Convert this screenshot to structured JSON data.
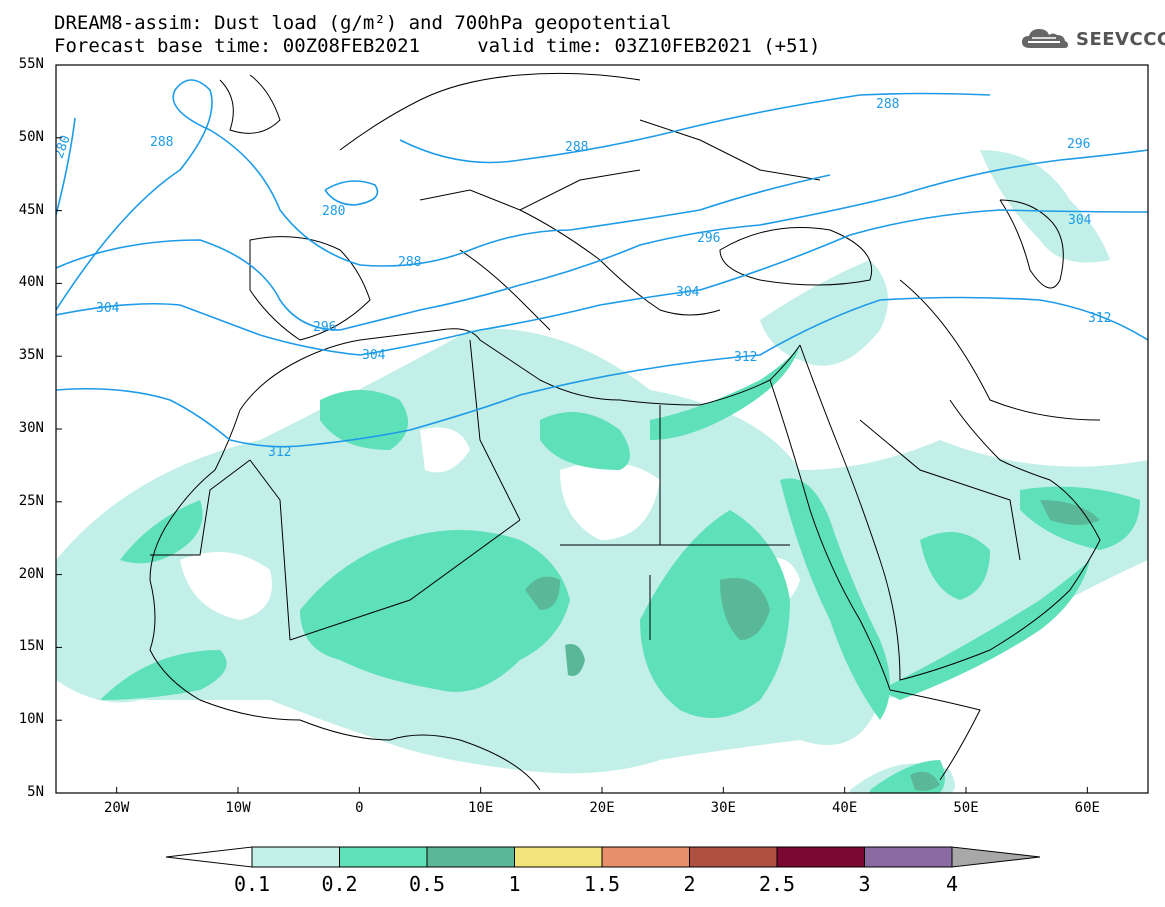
{
  "header": {
    "line1": "DREAM8-assim: Dust load (g/m²) and 700hPa geopotential",
    "line2": "Forecast base time: 00Z08FEB2021     valid time: 03Z10FEB2021 (+51)"
  },
  "brand": {
    "text": "SEEVCCC",
    "icon": "cloud-logo-icon"
  },
  "axes": {
    "lat_labels": [
      "55N",
      "50N",
      "45N",
      "40N",
      "35N",
      "30N",
      "25N",
      "20N",
      "15N",
      "10N",
      "5N"
    ],
    "lon_labels": [
      "20W",
      "10W",
      "0",
      "10E",
      "20E",
      "30E",
      "40E",
      "50E",
      "60E"
    ],
    "lon_range": [
      -25,
      65
    ],
    "lat_range": [
      5,
      55
    ]
  },
  "contours": {
    "color": "#1e9be8",
    "labels": [
      {
        "text": "280"
      },
      {
        "text": "288"
      },
      {
        "text": "280"
      },
      {
        "text": "288"
      },
      {
        "text": "288"
      },
      {
        "text": "288"
      },
      {
        "text": "296"
      },
      {
        "text": "296"
      },
      {
        "text": "296"
      },
      {
        "text": "304"
      },
      {
        "text": "304"
      },
      {
        "text": "304"
      },
      {
        "text": "304"
      },
      {
        "text": "312"
      },
      {
        "text": "312"
      },
      {
        "text": "312"
      }
    ]
  },
  "colorbar": {
    "levels": [
      "0.1",
      "0.2",
      "0.5",
      "1",
      "1.5",
      "2",
      "2.5",
      "3",
      "4"
    ],
    "colors": [
      "#c2f0e8",
      "#5ee0b8",
      "#5ab898",
      "#f0e47a",
      "#e8906a",
      "#b05040",
      "#7a0830",
      "#8a6aa0"
    ],
    "under_color": "#ffffff",
    "over_color": "#a8a8a8"
  }
}
